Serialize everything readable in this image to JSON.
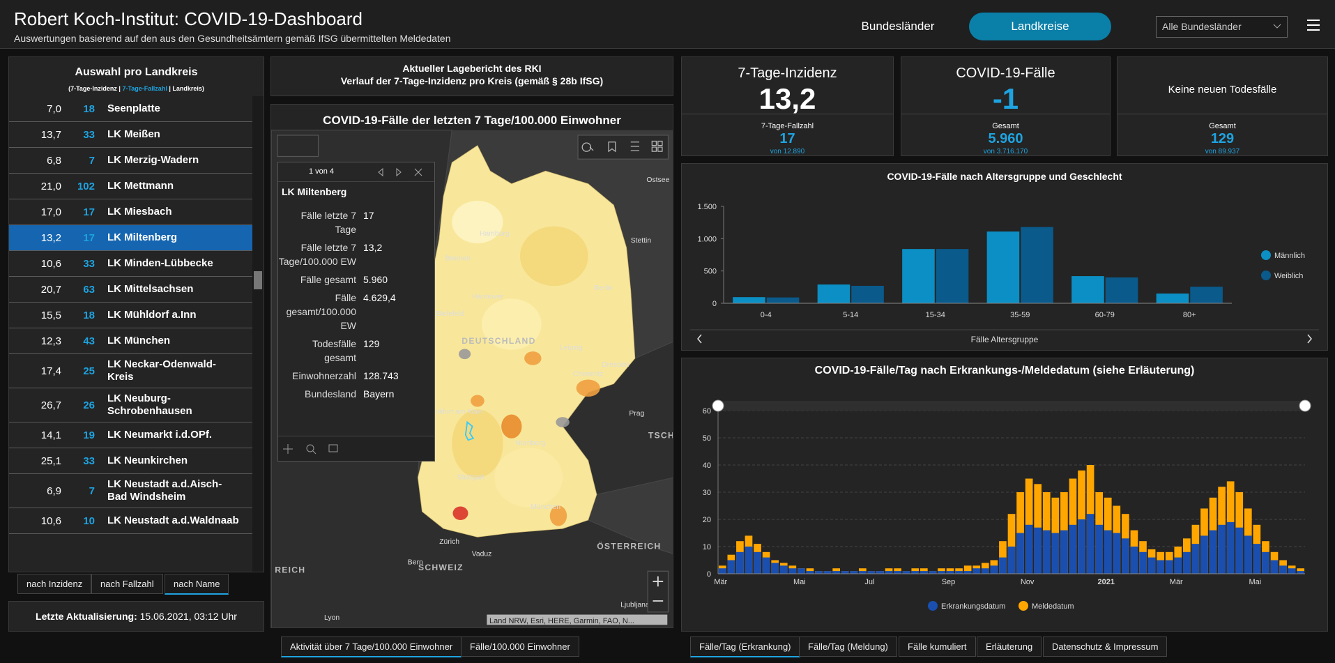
{
  "header": {
    "title": "Robert Koch-Institut: COVID-19-Dashboard",
    "subtitle": "Auswertungen basierend auf den aus den Gesundheitsämtern gemäß IfSG übermittelten Meldedaten",
    "nav": [
      "Bundesländer",
      "Landkreise"
    ],
    "dropdown": "Alle Bundesländer"
  },
  "list": {
    "title": "Auswahl pro Landkreis",
    "legend": [
      "(7-Tage-Inzidenz |",
      "7-Tage-Fallzahl",
      "| Landkreis)"
    ],
    "rows": [
      [
        "7,0",
        "18",
        "Seenplatte"
      ],
      [
        "13,7",
        "33",
        "LK Meißen"
      ],
      [
        "6,8",
        "7",
        "LK Merzig-Wadern"
      ],
      [
        "21,0",
        "102",
        "LK Mettmann"
      ],
      [
        "17,0",
        "17",
        "LK Miesbach"
      ],
      [
        "13,2",
        "17",
        "LK Miltenberg"
      ],
      [
        "10,6",
        "33",
        "LK Minden-Lübbecke"
      ],
      [
        "20,7",
        "63",
        "LK Mittelsachsen"
      ],
      [
        "15,5",
        "18",
        "LK Mühldorf a.Inn"
      ],
      [
        "12,3",
        "43",
        "LK München"
      ],
      [
        "17,4",
        "25",
        "LK Neckar-Odenwald-Kreis"
      ],
      [
        "26,7",
        "26",
        "LK Neuburg-Schrobenhausen"
      ],
      [
        "14,1",
        "19",
        "LK Neumarkt i.d.OPf."
      ],
      [
        "25,1",
        "33",
        "LK Neunkirchen"
      ],
      [
        "6,9",
        "7",
        "LK Neustadt a.d.Aisch-Bad Windsheim"
      ],
      [
        "10,6",
        "10",
        "LK Neustadt a.d.Waldnaab"
      ]
    ],
    "sort": [
      "nach Inzidenz",
      "nach Fallzahl",
      "nach Name"
    ]
  },
  "update": {
    "label": "Letzte Aktualisierung:",
    "value": "15.06.2021, 03:12 Uhr"
  },
  "report": {
    "line1": "Aktueller Lagebericht des RKI",
    "line2": "Verlauf der 7-Tage-Inzidenz pro Kreis (gemäß § 28b IfSG)"
  },
  "map": {
    "title": "COVID-19-Fälle der letzten 7 Tage/100.000 Einwohner",
    "labels": [
      "Ostsee",
      "Hamburg",
      "Bremen",
      "Hannover",
      "Bielefeld",
      "Berlin",
      "Stettin",
      "DEUTSCHLAND",
      "Leipzig",
      "Dresden",
      "Chemnitz",
      "Frankfurt am Main",
      "Nürnberg",
      "Prag",
      "Stuttgart",
      "München",
      "Zürich",
      "Vaduz",
      "Bern",
      "SCHWEIZ",
      "ÖSTERREICH",
      "Lyon",
      "Ljubljana",
      "TSCHE",
      "REICH"
    ],
    "attribution": "Land NRW, Esri, HERE, Garmin, FAO, N...",
    "popup": {
      "counter": "1 von 4",
      "title": "LK Miltenberg",
      "rows": [
        [
          "Fälle letzte 7 Tage",
          "17"
        ],
        [
          "Fälle letzte 7 Tage/100.000 EW",
          "13,2"
        ],
        [
          "Fälle gesamt",
          "5.960"
        ],
        [
          "Fälle gesamt/100.000 EW",
          "4.629,4"
        ],
        [
          "Todesfälle gesamt",
          "129"
        ],
        [
          "Einwohnerzahl",
          "128.743"
        ],
        [
          "Bundesland",
          "Bayern"
        ]
      ]
    },
    "tabs": [
      "Aktivität über 7 Tage/100.000 Einwohner",
      "Fälle/100.000 Einwohner"
    ]
  },
  "kpis": [
    {
      "title": "7-Tage-Inzidenz",
      "value": "13,2",
      "sub": "7-Tage-Fallzahl",
      "subvalue": "17",
      "of": "von 12.890"
    },
    {
      "title": "COVID-19-Fälle",
      "value": "-1",
      "sub": "Gesamt",
      "subvalue": "5.960",
      "of": "von 3.716.170"
    },
    {
      "title": "Keine neuen Todesfälle",
      "sub": "Gesamt",
      "subvalue": "129",
      "of": "von 89.937"
    }
  ],
  "chart_data": [
    {
      "type": "bar",
      "title": "COVID-19-Fälle nach Altersgruppe und Geschlecht",
      "x_label": "Fälle Altersgruppe",
      "categories": [
        "0-4",
        "5-14",
        "15-34",
        "35-59",
        "60-79",
        "80+"
      ],
      "series": [
        {
          "name": "Männlich",
          "color": "#0b8fc4",
          "values": [
            95,
            290,
            840,
            1110,
            420,
            150
          ]
        },
        {
          "name": "Weiblich",
          "color": "#0a5a8c",
          "values": [
            90,
            270,
            840,
            1180,
            400,
            255
          ]
        }
      ],
      "ylim": [
        0,
        1500
      ],
      "yticks": [
        0,
        500,
        {
          "value": 1000,
          "label": "1.000"
        },
        {
          "value": 1500,
          "label": "1.500"
        }
      ],
      "grid": false,
      "legend": "right"
    },
    {
      "type": "bar",
      "title": "COVID-19-Fälle/Tag nach Erkrankungs-/Meldedatum (siehe Erläuterung)",
      "categories": [
        "Mär",
        null,
        null,
        null,
        null,
        null,
        null,
        null,
        null,
        "Mai",
        null,
        null,
        null,
        null,
        null,
        null,
        null,
        "Jul",
        null,
        null,
        null,
        null,
        null,
        null,
        null,
        null,
        "Sep",
        null,
        null,
        null,
        null,
        null,
        null,
        null,
        null,
        "Nov",
        null,
        null,
        null,
        null,
        null,
        null,
        null,
        null,
        "2021",
        null,
        null,
        null,
        null,
        null,
        null,
        null,
        "Mär",
        null,
        null,
        null,
        null,
        null,
        null,
        null,
        null,
        "Mai",
        null,
        null,
        null,
        null,
        null
      ],
      "series": [
        {
          "name": "Erkrankungsdatum",
          "color": "#1a4fb0",
          "values": [
            2,
            5,
            8,
            10,
            8,
            6,
            4,
            3,
            2,
            2,
            1,
            1,
            1,
            1,
            1,
            1,
            1,
            1,
            1,
            1,
            1,
            1,
            1,
            1,
            1,
            1,
            1,
            1,
            1,
            2,
            2,
            3,
            6,
            10,
            15,
            18,
            17,
            16,
            15,
            16,
            18,
            20,
            22,
            18,
            16,
            15,
            13,
            10,
            8,
            6,
            5,
            5,
            6,
            8,
            11,
            14,
            16,
            18,
            19,
            17,
            14,
            11,
            8,
            5,
            3,
            2,
            1
          ]
        },
        {
          "name": "Meldedatum",
          "color": "#ffa600",
          "values": [
            3,
            7,
            12,
            14,
            11,
            8,
            5,
            4,
            3,
            2,
            2,
            1,
            1,
            2,
            1,
            1,
            2,
            1,
            1,
            2,
            2,
            1,
            2,
            2,
            1,
            2,
            2,
            2,
            3,
            3,
            4,
            5,
            12,
            22,
            30,
            35,
            33,
            30,
            28,
            30,
            35,
            38,
            40,
            30,
            28,
            25,
            22,
            16,
            12,
            9,
            8,
            8,
            10,
            13,
            18,
            24,
            28,
            32,
            34,
            30,
            24,
            18,
            12,
            8,
            5,
            3,
            2
          ]
        }
      ],
      "ylim": [
        0,
        60
      ],
      "yticks": [
        0,
        10,
        20,
        30,
        40,
        50,
        60
      ],
      "grid": true,
      "legend": "bottom"
    }
  ],
  "tabs": [
    "Fälle/Tag (Erkrankung)",
    "Fälle/Tag (Meldung)",
    "Fälle kumuliert",
    "Erläuterung",
    "Datenschutz & Impressum"
  ]
}
